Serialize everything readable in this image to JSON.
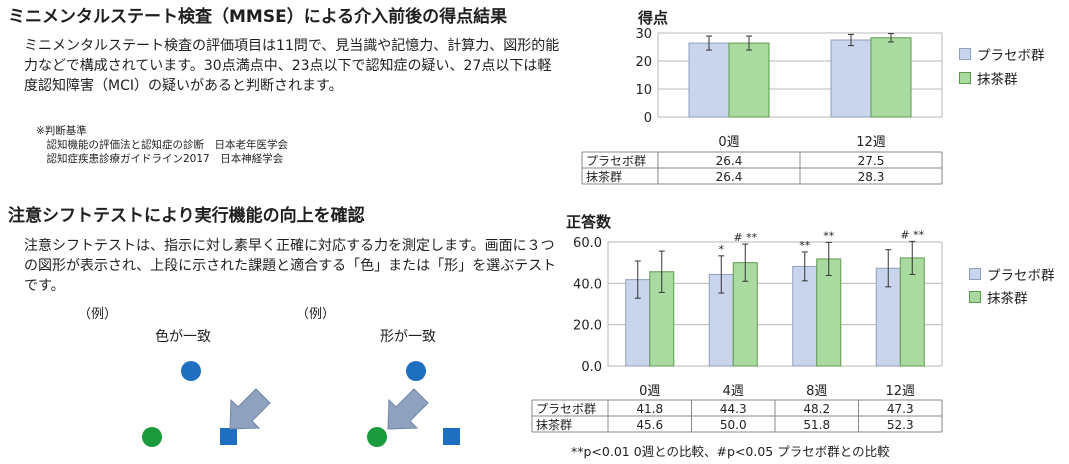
{
  "left": {
    "section1": {
      "title": "ミニメンタルステート検査（MMSE）による介入前後の得点結果",
      "body": "ミニメンタルステート検査の評価項目は11問で、見当識や記憶力、計算力、図形的能力などで構成されています。30点満点中、23点以下で認知症の疑い、27点以下は軽度認知障害（MCI）の疑いがあると判断されます。",
      "note": "※判断基準\n　認知機能の評価法と認知症の診断　日本老年医学会\n　認知症疾患診療ガイドライン2017　日本神経学会"
    },
    "section2": {
      "title": "注意シフトテストにより実行機能の向上を確認",
      "body": "注意シフトテストは、指示に対し素早く正確に対応する力を測定します。画面に３つの図形が表示され、上段に示された課題と適合する「色」または「形」を選ぶテストです。",
      "example1": {
        "tag": "（例）",
        "label": "色が一致"
      },
      "example2": {
        "tag": "（例）",
        "label": "形が一致"
      }
    }
  },
  "colors": {
    "placebo": "#c9d5ec",
    "matcha": "#a9dba0",
    "blue_shape": "#1f6fc0",
    "green_shape": "#1a9a3c",
    "arrow": "#8ea2c0"
  },
  "icons": {
    "arrow1": "arrow-icon",
    "arrow2": "arrow-icon"
  },
  "chart_data": [
    {
      "type": "bar",
      "title": "得点",
      "categories": [
        "0週",
        "12週"
      ],
      "series": [
        {
          "name": "プラセボ群",
          "values": [
            26.4,
            27.5
          ],
          "errors": [
            2.5,
            2.0
          ]
        },
        {
          "name": "抹茶群",
          "values": [
            26.4,
            28.3
          ],
          "errors": [
            2.5,
            1.5
          ]
        }
      ],
      "ylim": [
        0,
        30
      ],
      "yticks": [
        "0",
        "10",
        "20",
        "30"
      ],
      "grid": true,
      "legend": "right",
      "table_values": {
        "placebo": [
          "26.4",
          "27.5"
        ],
        "matcha": [
          "26.4",
          "28.3"
        ]
      }
    },
    {
      "type": "bar",
      "title": "正答数",
      "categories": [
        "0週",
        "4週",
        "8週",
        "12週"
      ],
      "series": [
        {
          "name": "プラセボ群",
          "values": [
            41.8,
            44.3,
            48.2,
            47.3
          ],
          "errors": [
            9,
            9,
            7,
            9
          ],
          "marks": [
            "",
            "*",
            "**",
            ""
          ]
        },
        {
          "name": "抹茶群",
          "values": [
            45.6,
            50.0,
            51.8,
            52.3
          ],
          "errors": [
            10,
            9,
            8,
            8
          ],
          "marks": [
            "",
            "# **",
            "**",
            "# **"
          ]
        }
      ],
      "ylim": [
        0,
        60
      ],
      "yticks": [
        "0.0",
        "20.0",
        "40.0",
        "60.0"
      ],
      "grid": true,
      "legend": "right",
      "table_values": {
        "placebo": [
          "41.8",
          "44.3",
          "48.2",
          "47.3"
        ],
        "matcha": [
          "45.6",
          "50.0",
          "51.8",
          "52.3"
        ]
      },
      "footnote": "**p<0.01 0週との比較、#p<0.05 プラセボ群との比較"
    }
  ]
}
